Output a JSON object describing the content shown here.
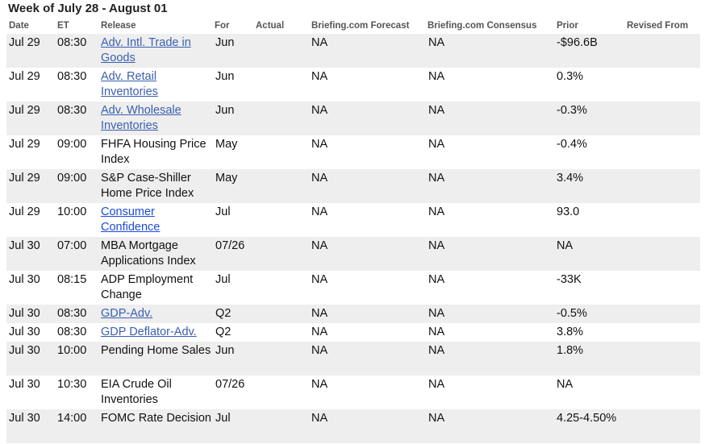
{
  "title": "Week of July 28 - August 01",
  "headers": {
    "date": "Date",
    "et": "ET",
    "release": "Release",
    "for": "For",
    "actual": "Actual",
    "forecast": "Briefing.com Forecast",
    "consensus": "Briefing.com Consensus",
    "prior": "Prior",
    "revised": "Revised From"
  },
  "rows": [
    {
      "date": "Jul 29",
      "et": "08:30",
      "release": "Adv. Intl. Trade in Goods",
      "link": true,
      "for": "Jun",
      "actual": "",
      "forecast": "NA",
      "consensus": "NA",
      "prior": "-$96.6B",
      "revised": ""
    },
    {
      "date": "Jul 29",
      "et": "08:30",
      "release": "Adv. Retail Inventories",
      "link": true,
      "for": "Jun",
      "actual": "",
      "forecast": "NA",
      "consensus": "NA",
      "prior": "0.3%",
      "revised": ""
    },
    {
      "date": "Jul 29",
      "et": "08:30",
      "release": "Adv. Wholesale Inventories",
      "link": true,
      "for": "Jun",
      "actual": "",
      "forecast": "NA",
      "consensus": "NA",
      "prior": "-0.3%",
      "revised": ""
    },
    {
      "date": "Jul 29",
      "et": "09:00",
      "release": "FHFA Housing Price Index",
      "link": false,
      "for": "May",
      "actual": "",
      "forecast": "NA",
      "consensus": "NA",
      "prior": "-0.4%",
      "revised": ""
    },
    {
      "date": "Jul 29",
      "et": "09:00",
      "release": "S&P Case-Shiller Home Price Index",
      "link": false,
      "for": "May",
      "actual": "",
      "forecast": "NA",
      "consensus": "NA",
      "prior": "3.4%",
      "revised": ""
    },
    {
      "date": "Jul 29",
      "et": "10:00",
      "release": "Consumer Confidence",
      "link": true,
      "bright": true,
      "for": "Jul",
      "actual": "",
      "forecast": "NA",
      "consensus": "NA",
      "prior": "93.0",
      "revised": ""
    },
    {
      "date": "Jul 30",
      "et": "07:00",
      "release": "MBA Mortgage Applications Index",
      "link": false,
      "for": "07/26",
      "actual": "",
      "forecast": "NA",
      "consensus": "NA",
      "prior": "NA",
      "revised": ""
    },
    {
      "date": "Jul 30",
      "et": "08:15",
      "release": "ADP Employment Change",
      "link": false,
      "for": "Jul",
      "actual": "",
      "forecast": "NA",
      "consensus": "NA",
      "prior": "-33K",
      "revised": ""
    },
    {
      "date": "Jul 30",
      "et": "08:30",
      "release": "GDP-Adv.",
      "link": true,
      "for": "Q2",
      "actual": "",
      "forecast": "NA",
      "consensus": "NA",
      "prior": "-0.5%",
      "revised": ""
    },
    {
      "date": "Jul 30",
      "et": "08:30",
      "release": "GDP Deflator-Adv.",
      "link": true,
      "for": "Q2",
      "actual": "",
      "forecast": "NA",
      "consensus": "NA",
      "prior": "3.8%",
      "revised": ""
    },
    {
      "date": "Jul 30",
      "et": "10:00",
      "release": "Pending Home Sales",
      "link": false,
      "for": "Jun",
      "actual": "",
      "forecast": "NA",
      "consensus": "NA",
      "prior": "1.8%",
      "revised": ""
    },
    {
      "date": "Jul 30",
      "et": "10:30",
      "release": "EIA Crude Oil Inventories",
      "link": false,
      "for": "07/26",
      "actual": "",
      "forecast": "NA",
      "consensus": "NA",
      "prior": "NA",
      "revised": ""
    },
    {
      "date": "Jul 30",
      "et": "14:00",
      "release": "FOMC Rate Decision",
      "link": false,
      "for": "Jul",
      "actual": "",
      "forecast": "NA",
      "consensus": "NA",
      "prior": "4.25-4.50%",
      "revised": ""
    }
  ]
}
